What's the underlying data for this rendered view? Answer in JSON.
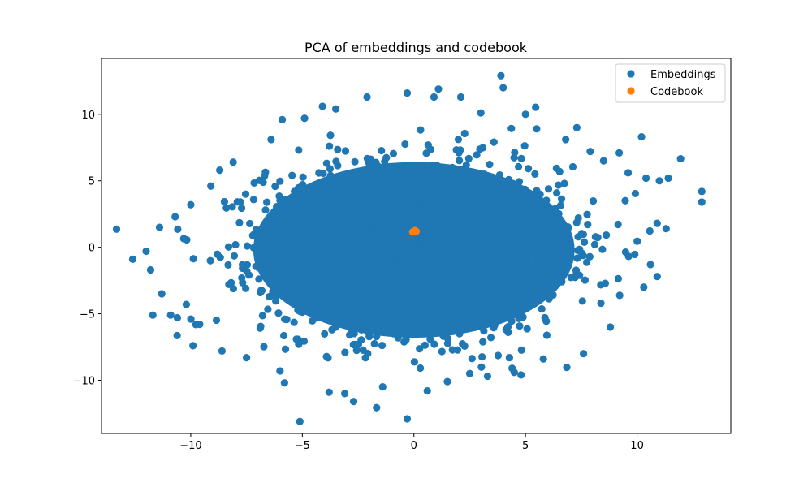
{
  "chart_data": {
    "type": "scatter",
    "title": "PCA of embeddings and codebook",
    "xlabel": "",
    "ylabel": "",
    "xlim": [
      -14,
      14.2
    ],
    "ylim": [
      -14,
      14.2
    ],
    "x_ticks": [
      -10,
      -5,
      0,
      5,
      10
    ],
    "y_ticks": [
      -10,
      -5,
      0,
      5,
      10
    ],
    "x_tick_labels": [
      "−10",
      "−5",
      "0",
      "5",
      "10"
    ],
    "y_tick_labels": [
      "−10",
      "−5",
      "0",
      "5",
      "10"
    ],
    "grid": false,
    "legend_position": "top-right",
    "series": [
      {
        "name": "Embeddings",
        "color": "#1f77b4",
        "distribution": "dense Gaussian-like cloud centered near (0, 0), x spread about -12.5 to 13, y spread about -13 to 13",
        "outlier_points": [
          [
            -12.6,
            -0.9
          ],
          [
            -12.0,
            -0.3
          ],
          [
            -11.4,
            1.5
          ],
          [
            -11.8,
            -1.7
          ],
          [
            -11.7,
            -5.1
          ],
          [
            -11.3,
            -3.5
          ],
          [
            -10.9,
            -5.1
          ],
          [
            -10.6,
            -5.3
          ],
          [
            -10.2,
            -4.3
          ],
          [
            -10.7,
            2.3
          ],
          [
            -10.0,
            3.2
          ],
          [
            -9.9,
            -7.4
          ],
          [
            -9.6,
            -5.8
          ],
          [
            -9.1,
            4.6
          ],
          [
            -8.7,
            5.8
          ],
          [
            -8.6,
            -7.8
          ],
          [
            -8.1,
            6.4
          ],
          [
            -7.5,
            -8.3
          ],
          [
            -6.4,
            8.1
          ],
          [
            -6.0,
            -9.3
          ],
          [
            -5.8,
            -10.2
          ],
          [
            -5.9,
            9.6
          ],
          [
            -4.9,
            9.7
          ],
          [
            -4.1,
            10.6
          ],
          [
            -3.5,
            10.4
          ],
          [
            -3.8,
            -10.9
          ],
          [
            -3.1,
            -11.0
          ],
          [
            -2.7,
            -11.6
          ],
          [
            -2.1,
            11.3
          ],
          [
            -1.4,
            -10.5
          ],
          [
            -0.3,
            11.6
          ],
          [
            -0.3,
            -12.9
          ],
          [
            0.6,
            -10.8
          ],
          [
            0.9,
            11.3
          ],
          [
            1.1,
            11.9
          ],
          [
            1.5,
            -10.1
          ],
          [
            2.1,
            11.3
          ],
          [
            2.5,
            -9.5
          ],
          [
            3.0,
            10.1
          ],
          [
            3.3,
            -9.7
          ],
          [
            3.9,
            12.9
          ],
          [
            4.0,
            12.0
          ],
          [
            4.4,
            -9.1
          ],
          [
            4.8,
            -9.6
          ],
          [
            5.0,
            10.0
          ],
          [
            5.5,
            8.9
          ],
          [
            5.8,
            -8.4
          ],
          [
            6.8,
            8.1
          ],
          [
            7.3,
            9.0
          ],
          [
            7.6,
            -8.0
          ],
          [
            7.9,
            7.2
          ],
          [
            8.5,
            6.5
          ],
          [
            8.8,
            -6.0
          ],
          [
            9.2,
            7.1
          ],
          [
            9.6,
            5.6
          ],
          [
            10.2,
            8.3
          ],
          [
            10.4,
            5.2
          ],
          [
            11.0,
            5.0
          ],
          [
            11.4,
            5.2
          ],
          [
            11.3,
            1.4
          ],
          [
            10.9,
            1.8
          ],
          [
            10.6,
            -1.3
          ],
          [
            10.9,
            -2.2
          ],
          [
            10.3,
            -3.0
          ],
          [
            12.9,
            4.2
          ],
          [
            12.9,
            3.4
          ]
        ]
      },
      {
        "name": "Codebook",
        "color": "#ff7f0e",
        "points": [
          [
            0.0,
            1.2
          ],
          [
            0.1,
            1.2
          ],
          [
            0.05,
            1.25
          ],
          [
            -0.05,
            1.15
          ]
        ]
      }
    ]
  }
}
